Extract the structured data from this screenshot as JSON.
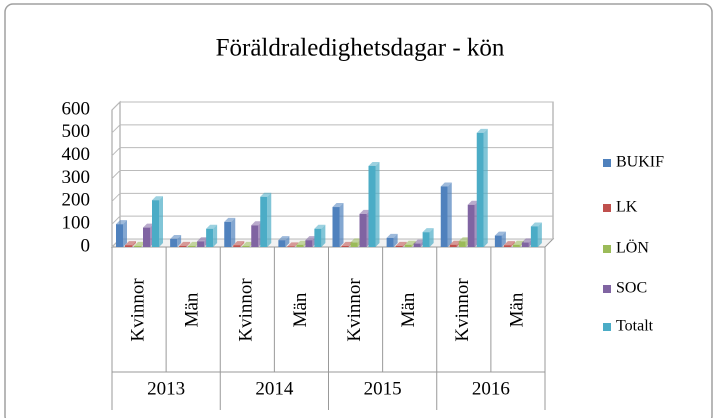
{
  "chart_data": {
    "type": "bar3d",
    "title": "Föräldraledighetsdagar - kön",
    "groups": [
      "2013",
      "2014",
      "2015",
      "2016"
    ],
    "categories": [
      "Kvinnor",
      "Män",
      "Kvinnor",
      "Män",
      "Kvinnor",
      "Män",
      "Kvinnor",
      "Män"
    ],
    "series": [
      {
        "name": "BUKIF",
        "color": "#4f81bd",
        "values": [
          100,
          35,
          110,
          30,
          175,
          40,
          265,
          50
        ]
      },
      {
        "name": "LK",
        "color": "#c0504d",
        "values": [
          8,
          5,
          8,
          3,
          5,
          5,
          10,
          8
        ]
      },
      {
        "name": "LÖN",
        "color": "#9bbb59",
        "values": [
          5,
          5,
          5,
          10,
          20,
          10,
          25,
          10
        ]
      },
      {
        "name": "SOC",
        "color": "#8064a2",
        "values": [
          85,
          25,
          95,
          30,
          145,
          15,
          185,
          20
        ]
      },
      {
        "name": "Totalt",
        "color": "#4bacc6",
        "values": [
          205,
          80,
          220,
          80,
          355,
          65,
          500,
          90
        ]
      }
    ],
    "ylim": [
      0,
      600
    ],
    "yticks": [
      0,
      100,
      200,
      300,
      400,
      500,
      600
    ],
    "grid": true,
    "legend": "right"
  }
}
